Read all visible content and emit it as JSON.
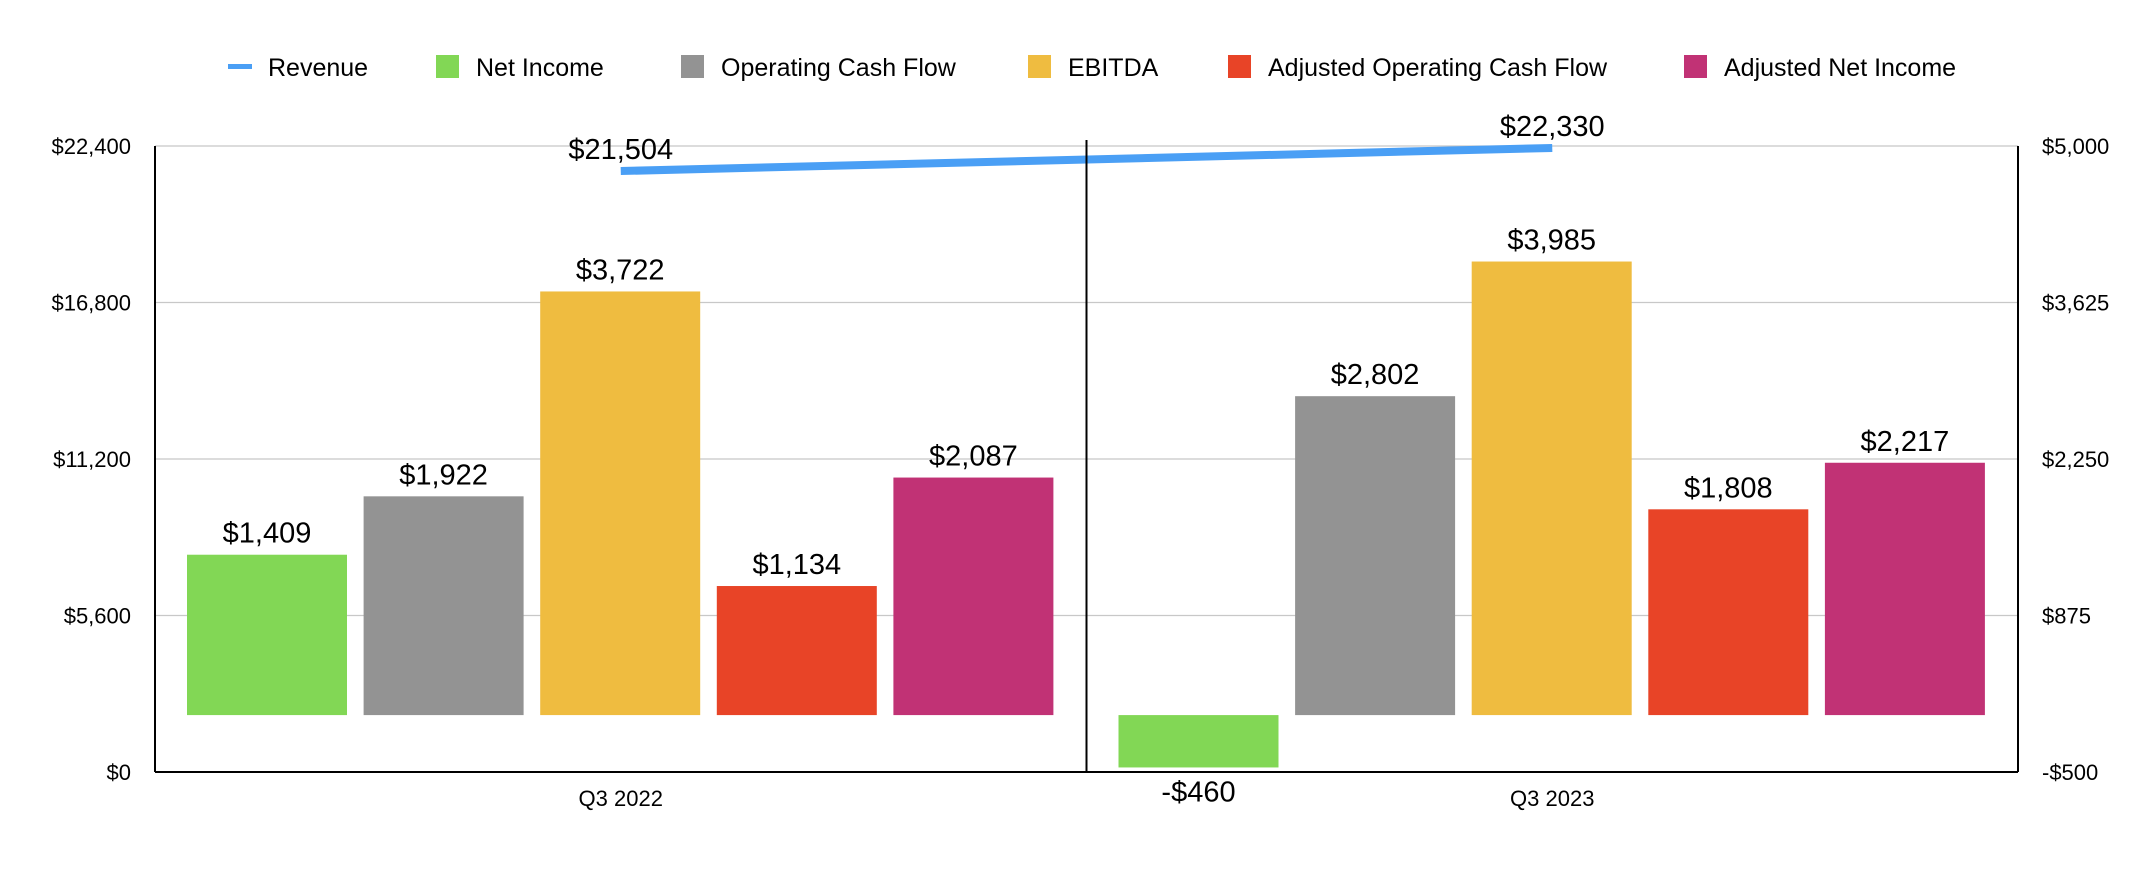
{
  "chart_data": {
    "type": "bar",
    "title": "",
    "xlabel": "",
    "categories": [
      "Q3 2022",
      "Q3 2023"
    ],
    "left_axis": {
      "ticks": [
        "$0",
        "$5,600",
        "$11,200",
        "$16,800",
        "$22,400"
      ],
      "ylim": [
        0,
        22400
      ]
    },
    "right_axis": {
      "ticks": [
        "-$500",
        "$875",
        "$2,250",
        "$3,625",
        "$5,000"
      ],
      "ylim": [
        -500,
        5000
      ]
    },
    "legend": {
      "position": "top-center",
      "items": [
        {
          "name": "Revenue",
          "kind": "line",
          "color": "#4A9FF5"
        },
        {
          "name": "Net Income",
          "kind": "bar",
          "color": "#82D755"
        },
        {
          "name": "Operating Cash Flow",
          "kind": "bar",
          "color": "#939393"
        },
        {
          "name": "EBITDA",
          "kind": "bar",
          "color": "#EFBC40"
        },
        {
          "name": "Adjusted Operating Cash Flow",
          "kind": "bar",
          "color": "#E84427"
        },
        {
          "name": "Adjusted Net Income",
          "kind": "bar",
          "color": "#C13275"
        }
      ]
    },
    "line_series": {
      "name": "Revenue",
      "axis": "left",
      "color": "#4A9FF5",
      "values": [
        21504,
        22330
      ],
      "labels": [
        "$21,504",
        "$22,330"
      ]
    },
    "series": [
      {
        "name": "Net Income",
        "axis": "right",
        "color": "#82D755",
        "values": [
          1409,
          -460
        ],
        "labels": [
          "$1,409",
          "-$460"
        ]
      },
      {
        "name": "Operating Cash Flow",
        "axis": "right",
        "color": "#939393",
        "values": [
          1922,
          2802
        ],
        "labels": [
          "$1,922",
          "$2,802"
        ]
      },
      {
        "name": "EBITDA",
        "axis": "right",
        "color": "#EFBC40",
        "values": [
          3722,
          3985
        ],
        "labels": [
          "$3,722",
          "$3,985"
        ]
      },
      {
        "name": "Adjusted Operating Cash Flow",
        "axis": "right",
        "color": "#E84427",
        "values": [
          1134,
          1808
        ],
        "labels": [
          "$1,134",
          "$1,808"
        ]
      },
      {
        "name": "Adjusted Net Income",
        "axis": "right",
        "color": "#C13275",
        "values": [
          2087,
          2217
        ],
        "labels": [
          "$2,087",
          "$2,217"
        ]
      }
    ],
    "grid": true
  }
}
